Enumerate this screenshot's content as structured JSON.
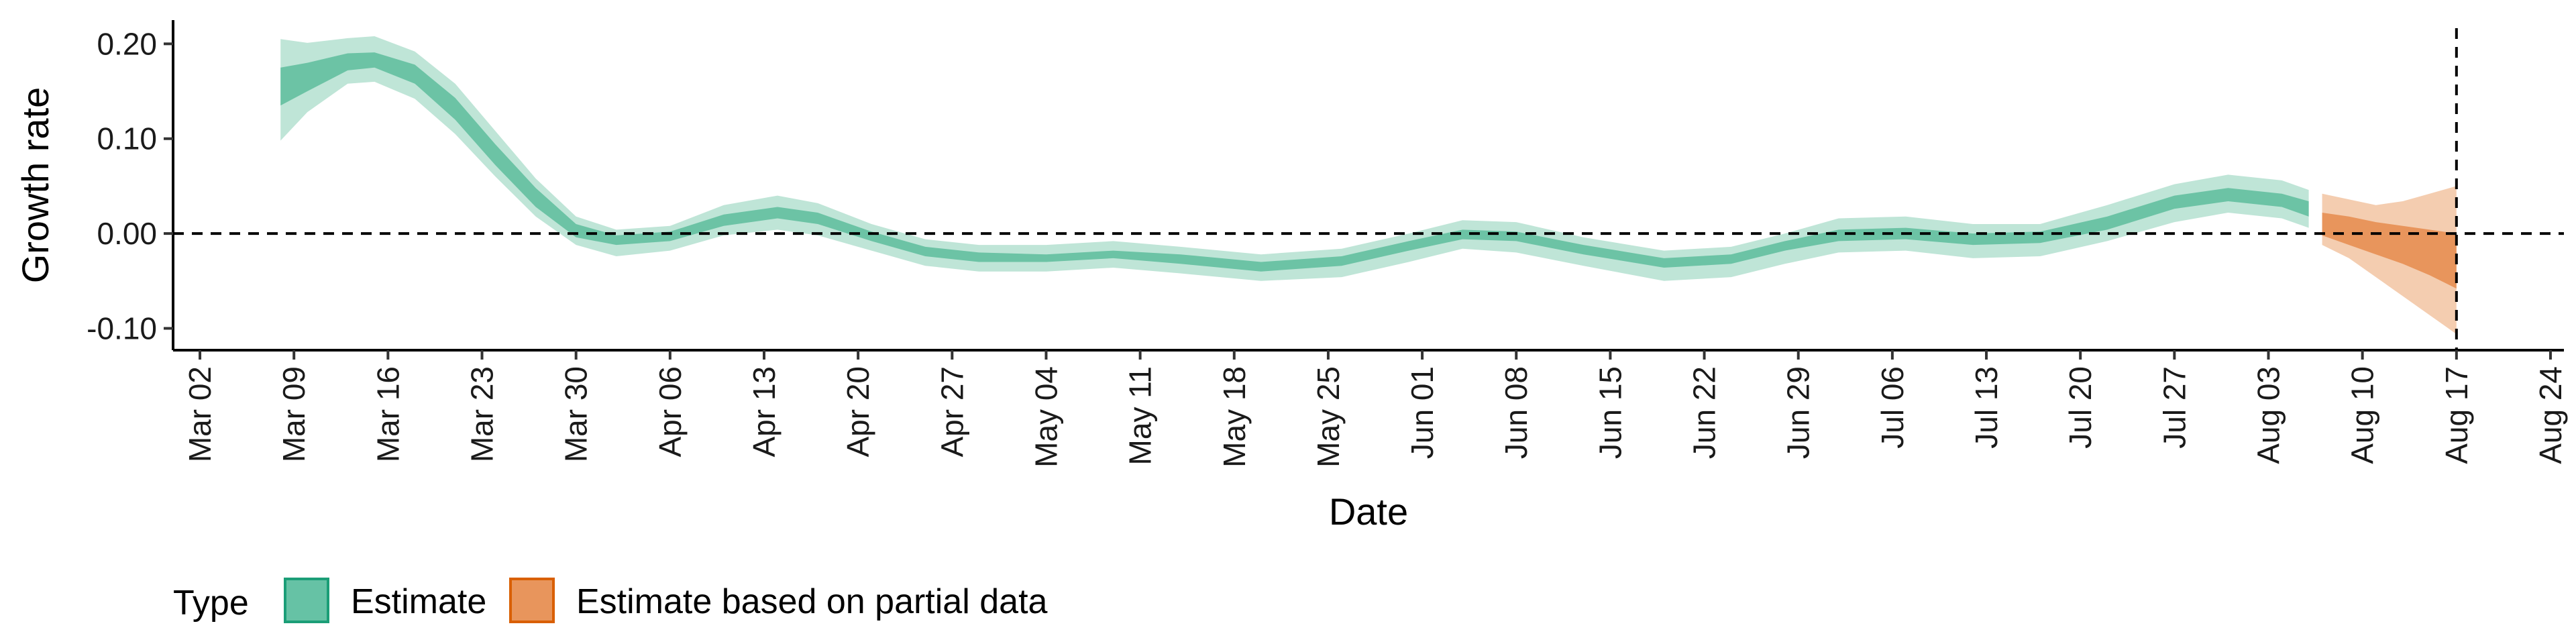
{
  "chart_data": {
    "type": "area",
    "title": "",
    "xlabel": "Date",
    "ylabel": "Growth rate",
    "x_range": [
      "2020-02-29",
      "2020-08-25"
    ],
    "ylim": [
      -0.123,
      0.225
    ],
    "x_ticks": [
      {
        "date": "2020-03-02",
        "label": "Mar 02"
      },
      {
        "date": "2020-03-09",
        "label": "Mar 09"
      },
      {
        "date": "2020-03-16",
        "label": "Mar 16"
      },
      {
        "date": "2020-03-23",
        "label": "Mar 23"
      },
      {
        "date": "2020-03-30",
        "label": "Mar 30"
      },
      {
        "date": "2020-04-06",
        "label": "Apr 06"
      },
      {
        "date": "2020-04-13",
        "label": "Apr 13"
      },
      {
        "date": "2020-04-20",
        "label": "Apr 20"
      },
      {
        "date": "2020-04-27",
        "label": "Apr 27"
      },
      {
        "date": "2020-05-04",
        "label": "May 04"
      },
      {
        "date": "2020-05-11",
        "label": "May 11"
      },
      {
        "date": "2020-05-18",
        "label": "May 18"
      },
      {
        "date": "2020-05-25",
        "label": "May 25"
      },
      {
        "date": "2020-06-01",
        "label": "Jun 01"
      },
      {
        "date": "2020-06-08",
        "label": "Jun 08"
      },
      {
        "date": "2020-06-15",
        "label": "Jun 15"
      },
      {
        "date": "2020-06-22",
        "label": "Jun 22"
      },
      {
        "date": "2020-06-29",
        "label": "Jun 29"
      },
      {
        "date": "2020-07-06",
        "label": "Jul 06"
      },
      {
        "date": "2020-07-13",
        "label": "Jul 13"
      },
      {
        "date": "2020-07-20",
        "label": "Jul 20"
      },
      {
        "date": "2020-07-27",
        "label": "Jul 27"
      },
      {
        "date": "2020-08-03",
        "label": "Aug 03"
      },
      {
        "date": "2020-08-10",
        "label": "Aug 10"
      },
      {
        "date": "2020-08-17",
        "label": "Aug 17"
      },
      {
        "date": "2020-08-24",
        "label": "Aug 24"
      }
    ],
    "y_ticks": [
      {
        "value": 0.2,
        "label": "0.20"
      },
      {
        "value": 0.1,
        "label": "0.10"
      },
      {
        "value": 0.0,
        "label": "0.00"
      },
      {
        "value": -0.1,
        "label": "-0.10"
      }
    ],
    "reference_lines": [
      {
        "orientation": "horizontal",
        "value": 0.0,
        "style": "dashed"
      },
      {
        "orientation": "vertical",
        "date": "2020-08-17",
        "style": "dashed"
      }
    ],
    "grid": false,
    "legend": {
      "position": "bottom-left",
      "title": "Type",
      "entries": [
        {
          "label": "Estimate",
          "fill": "#66c2a5",
          "border": "#1b9e77"
        },
        {
          "label": "Estimate based on partial data",
          "fill": "#e8955c",
          "border": "#d95f02"
        }
      ]
    },
    "series": [
      {
        "name": "Estimate",
        "color_outer": "#bfe5d7",
        "color_inner": "#6cc3a5",
        "points": [
          {
            "x": "2020-03-08",
            "outer": [
              0.098,
              0.205
            ],
            "inner": [
              0.135,
              0.175
            ]
          },
          {
            "x": "2020-03-10",
            "outer": [
              0.128,
              0.201
            ],
            "inner": [
              0.15,
              0.18
            ]
          },
          {
            "x": "2020-03-13",
            "outer": [
              0.158,
              0.206
            ],
            "inner": [
              0.172,
              0.19
            ]
          },
          {
            "x": "2020-03-15",
            "outer": [
              0.16,
              0.208
            ],
            "inner": [
              0.175,
              0.191
            ]
          },
          {
            "x": "2020-03-18",
            "outer": [
              0.142,
              0.192
            ],
            "inner": [
              0.158,
              0.178
            ]
          },
          {
            "x": "2020-03-21",
            "outer": [
              0.105,
              0.158
            ],
            "inner": [
              0.12,
              0.143
            ]
          },
          {
            "x": "2020-03-24",
            "outer": [
              0.06,
              0.108
            ],
            "inner": [
              0.072,
              0.094
            ]
          },
          {
            "x": "2020-03-27",
            "outer": [
              0.018,
              0.058
            ],
            "inner": [
              0.028,
              0.048
            ]
          },
          {
            "x": "2020-03-30",
            "outer": [
              -0.012,
              0.018
            ],
            "inner": [
              -0.004,
              0.01
            ]
          },
          {
            "x": "2020-04-02",
            "outer": [
              -0.024,
              0.004
            ],
            "inner": [
              -0.012,
              -0.002
            ]
          },
          {
            "x": "2020-04-06",
            "outer": [
              -0.018,
              0.008
            ],
            "inner": [
              -0.008,
              0.002
            ]
          },
          {
            "x": "2020-04-10",
            "outer": [
              -0.002,
              0.03
            ],
            "inner": [
              0.008,
              0.02
            ]
          },
          {
            "x": "2020-04-14",
            "outer": [
              0.004,
              0.04
            ],
            "inner": [
              0.016,
              0.028
            ]
          },
          {
            "x": "2020-04-17",
            "outer": [
              -0.002,
              0.032
            ],
            "inner": [
              0.01,
              0.022
            ]
          },
          {
            "x": "2020-04-21",
            "outer": [
              -0.018,
              0.01
            ],
            "inner": [
              -0.008,
              0.002
            ]
          },
          {
            "x": "2020-04-25",
            "outer": [
              -0.034,
              -0.006
            ],
            "inner": [
              -0.024,
              -0.014
            ]
          },
          {
            "x": "2020-04-29",
            "outer": [
              -0.04,
              -0.012
            ],
            "inner": [
              -0.03,
              -0.02
            ]
          },
          {
            "x": "2020-05-04",
            "outer": [
              -0.04,
              -0.012
            ],
            "inner": [
              -0.03,
              -0.022
            ]
          },
          {
            "x": "2020-05-09",
            "outer": [
              -0.036,
              -0.008
            ],
            "inner": [
              -0.026,
              -0.018
            ]
          },
          {
            "x": "2020-05-14",
            "outer": [
              -0.042,
              -0.014
            ],
            "inner": [
              -0.032,
              -0.022
            ]
          },
          {
            "x": "2020-05-20",
            "outer": [
              -0.05,
              -0.022
            ],
            "inner": [
              -0.04,
              -0.03
            ]
          },
          {
            "x": "2020-05-26",
            "outer": [
              -0.046,
              -0.016
            ],
            "inner": [
              -0.034,
              -0.024
            ]
          },
          {
            "x": "2020-05-31",
            "outer": [
              -0.03,
              0.0
            ],
            "inner": [
              -0.018,
              -0.008
            ]
          },
          {
            "x": "2020-06-04",
            "outer": [
              -0.016,
              0.014
            ],
            "inner": [
              -0.006,
              0.004
            ]
          },
          {
            "x": "2020-06-08",
            "outer": [
              -0.02,
              0.012
            ],
            "inner": [
              -0.008,
              0.002
            ]
          },
          {
            "x": "2020-06-13",
            "outer": [
              -0.034,
              -0.004
            ],
            "inner": [
              -0.022,
              -0.012
            ]
          },
          {
            "x": "2020-06-19",
            "outer": [
              -0.05,
              -0.018
            ],
            "inner": [
              -0.036,
              -0.026
            ]
          },
          {
            "x": "2020-06-24",
            "outer": [
              -0.046,
              -0.014
            ],
            "inner": [
              -0.032,
              -0.022
            ]
          },
          {
            "x": "2020-06-28",
            "outer": [
              -0.032,
              0.0
            ],
            "inner": [
              -0.018,
              -0.008
            ]
          },
          {
            "x": "2020-07-02",
            "outer": [
              -0.02,
              0.016
            ],
            "inner": [
              -0.008,
              0.004
            ]
          },
          {
            "x": "2020-07-07",
            "outer": [
              -0.018,
              0.018
            ],
            "inner": [
              -0.006,
              0.006
            ]
          },
          {
            "x": "2020-07-12",
            "outer": [
              -0.026,
              0.01
            ],
            "inner": [
              -0.012,
              0.0
            ]
          },
          {
            "x": "2020-07-17",
            "outer": [
              -0.024,
              0.01
            ],
            "inner": [
              -0.01,
              0.002
            ]
          },
          {
            "x": "2020-07-22",
            "outer": [
              -0.008,
              0.03
            ],
            "inner": [
              0.004,
              0.018
            ]
          },
          {
            "x": "2020-07-27",
            "outer": [
              0.012,
              0.052
            ],
            "inner": [
              0.026,
              0.04
            ]
          },
          {
            "x": "2020-07-31",
            "outer": [
              0.022,
              0.062
            ],
            "inner": [
              0.034,
              0.048
            ]
          },
          {
            "x": "2020-08-04",
            "outer": [
              0.016,
              0.056
            ],
            "inner": [
              0.028,
              0.042
            ]
          },
          {
            "x": "2020-08-06",
            "outer": [
              0.006,
              0.046
            ],
            "inner": [
              0.018,
              0.034
            ]
          }
        ]
      },
      {
        "name": "Estimate based on partial data",
        "color_outer": "#f4cdb0",
        "color_inner": "#e8955c",
        "points": [
          {
            "x": "2020-08-07",
            "outer": [
              -0.012,
              0.042
            ],
            "inner": [
              -0.002,
              0.022
            ]
          },
          {
            "x": "2020-08-09",
            "outer": [
              -0.026,
              0.036
            ],
            "inner": [
              -0.012,
              0.018
            ]
          },
          {
            "x": "2020-08-11",
            "outer": [
              -0.046,
              0.03
            ],
            "inner": [
              -0.022,
              0.012
            ]
          },
          {
            "x": "2020-08-13",
            "outer": [
              -0.066,
              0.034
            ],
            "inner": [
              -0.032,
              0.008
            ]
          },
          {
            "x": "2020-08-15",
            "outer": [
              -0.086,
              0.042
            ],
            "inner": [
              -0.044,
              0.004
            ]
          },
          {
            "x": "2020-08-17",
            "outer": [
              -0.106,
              0.05
            ],
            "inner": [
              -0.058,
              0.0
            ]
          }
        ]
      }
    ]
  }
}
